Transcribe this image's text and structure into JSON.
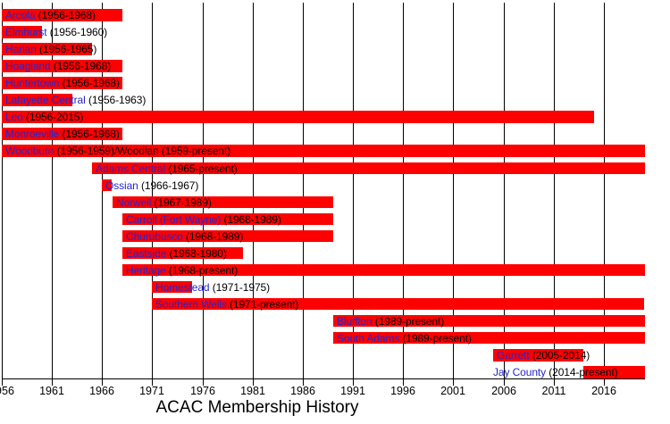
{
  "title": "ACAC Membership History",
  "colors": {
    "bar": "#fd0000",
    "school_link": "#2626cd",
    "years_text": "#000000",
    "axis": "#000000",
    "grid": "#000000",
    "background": "#ffffff"
  },
  "chart_data": {
    "type": "bar",
    "subtype": "gantt-timeline",
    "title": "ACAC Membership History",
    "x_axis": {
      "min": 1956,
      "max": 2020,
      "tick_years": [
        1956,
        1961,
        1966,
        1971,
        1976,
        1981,
        1986,
        1991,
        1996,
        2001,
        2006,
        2011,
        2016
      ],
      "grid": true,
      "grid_orientation": "vertical"
    },
    "present_year": 2020.1,
    "legend": null,
    "rows": [
      {
        "name": "Arcola",
        "years": "(1956-1968)",
        "start": 1956,
        "end": 1968
      },
      {
        "name": "Elmhurst",
        "years": "(1956-1960)",
        "start": 1956,
        "end": 1960
      },
      {
        "name": "Harlan",
        "years": "(1956-1965)",
        "start": 1956,
        "end": 1965
      },
      {
        "name": "Hoagland",
        "years": "(1956-1968)",
        "start": 1956,
        "end": 1968
      },
      {
        "name": "Huntertown",
        "years": "(1956-1968)",
        "start": 1956,
        "end": 1968
      },
      {
        "name": "Lafayette Central",
        "years": "(1956-1963)",
        "start": 1956,
        "end": 1963
      },
      {
        "name": "Leo",
        "years": "(1956-2015)",
        "start": 1956,
        "end": 2015
      },
      {
        "name": "Monroeville",
        "years": "(1956-1968)",
        "start": 1956,
        "end": 1968
      },
      {
        "name": "Woodburn",
        "years": "(1956-1959)/Woodlan (1959-present)",
        "start": 1956,
        "end": "present"
      },
      {
        "name": "Adams Central",
        "years": "(1965-present)",
        "start": 1965,
        "end": "present"
      },
      {
        "name": "Ossian",
        "years": "(1966-1967)",
        "start": 1966,
        "end": 1967
      },
      {
        "name": "Norwell",
        "years": "(1967-1989)",
        "start": 1967,
        "end": 1989
      },
      {
        "name": "Carroll (Fort Wayne)",
        "years": "(1968-1989)",
        "start": 1968,
        "end": 1989
      },
      {
        "name": "Churubusco",
        "years": "(1968-1989)",
        "start": 1968,
        "end": 1989
      },
      {
        "name": "Eastside",
        "years": "(1968-1980)",
        "start": 1968,
        "end": 1980
      },
      {
        "name": "Heritage",
        "years": "(1968-present)",
        "start": 1968,
        "end": "present"
      },
      {
        "name": "Homestead",
        "years": "(1971-1975)",
        "start": 1971,
        "end": 1975
      },
      {
        "name": "Southern Wells",
        "years": "(1971-present)",
        "start": 1971,
        "end": "present"
      },
      {
        "name": "Bluffton",
        "years": "(1989-present)",
        "start": 1989,
        "end": "present"
      },
      {
        "name": "South Adams",
        "years": "(1989-present)",
        "start": 1989,
        "end": "present"
      },
      {
        "name": "Garrett",
        "years": "(2005-2014)",
        "start": 2005,
        "end": 2014
      },
      {
        "name": "Jay County",
        "years": "(2014-present)",
        "start": 2014,
        "end": "present",
        "label_year": 2005
      }
    ]
  }
}
